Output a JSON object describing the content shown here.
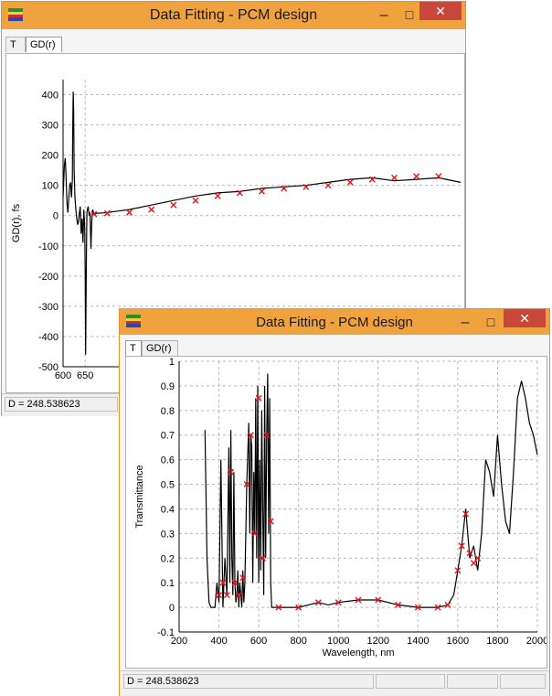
{
  "colors": {
    "titlebar": "#f0a23e",
    "close": "#c7483b",
    "fit_curve": "#000000",
    "data_points": "#e8141a"
  },
  "windows": [
    {
      "title": "Data Fitting - PCM design",
      "tabs": [
        "T",
        "GD(r)"
      ],
      "active_tab": "GD(r)",
      "status_text": "D = 248.538623",
      "controls": {
        "minimize": "–",
        "maximize": "□",
        "close": "✕"
      }
    },
    {
      "title": "Data Fitting - PCM design",
      "tabs": [
        "T",
        "GD(r)"
      ],
      "active_tab": "T",
      "status_text": "D = 248.538623",
      "controls": {
        "minimize": "–",
        "maximize": "□",
        "close": "✕"
      }
    }
  ],
  "chart_data": [
    {
      "type": "line",
      "ylabel": "GD(r), fs",
      "xlabel": "",
      "xlim": [
        600,
        1500
      ],
      "ylim": [
        -500,
        450
      ],
      "grid": true,
      "xticks": [
        600,
        650
      ],
      "yticks": [
        400,
        300,
        200,
        100,
        0,
        -100,
        -200,
        -300,
        -400,
        -500
      ],
      "series": [
        {
          "style": "line",
          "x": [
            600,
            603,
            605,
            607,
            609,
            611,
            613,
            615,
            617,
            619,
            621,
            622,
            623,
            624,
            625,
            627,
            629,
            631,
            633,
            635,
            637,
            639,
            641,
            643,
            645,
            647,
            649,
            650,
            651,
            652,
            653,
            654,
            655,
            657,
            659,
            661,
            663,
            665,
            667,
            669,
            671,
            673,
            675,
            680,
            690,
            700,
            750,
            800,
            850,
            900,
            950,
            1000,
            1050,
            1100,
            1150,
            1200,
            1250,
            1300,
            1350,
            1400,
            1450,
            1500
          ],
          "y": [
            60,
            170,
            190,
            120,
            40,
            10,
            60,
            100,
            110,
            60,
            120,
            300,
            410,
            350,
            150,
            60,
            20,
            -10,
            -30,
            -20,
            10,
            30,
            -60,
            -10,
            -90,
            20,
            -40,
            -180,
            -460,
            -300,
            -120,
            10,
            20,
            30,
            0,
            10,
            -110,
            -20,
            20,
            10,
            5,
            5,
            8,
            8,
            9,
            10,
            20,
            35,
            50,
            65,
            75,
            80,
            90,
            95,
            100,
            110,
            120,
            125,
            115,
            120,
            125,
            110
          ]
        },
        {
          "style": "markers",
          "x": [
            670,
            700,
            750,
            800,
            850,
            900,
            950,
            1000,
            1050,
            1100,
            1150,
            1200,
            1250,
            1300,
            1350,
            1400,
            1450
          ],
          "y": [
            5,
            8,
            10,
            20,
            35,
            50,
            65,
            75,
            80,
            90,
            95,
            100,
            110,
            120,
            125,
            130,
            130
          ]
        }
      ]
    },
    {
      "type": "line",
      "ylabel": "Transmittance",
      "xlabel": "Wavelength, nm",
      "xlim": [
        200,
        2000
      ],
      "ylim": [
        -0.1,
        1
      ],
      "grid": true,
      "xticks": [
        200,
        400,
        600,
        800,
        1000,
        1200,
        1400,
        1600,
        1800,
        2000
      ],
      "yticks": [
        1,
        0.9,
        0.8,
        0.7,
        0.6,
        0.5,
        0.4,
        0.3,
        0.2,
        0.1,
        0,
        -0.1
      ],
      "series": [
        {
          "style": "line",
          "x": [
            330,
            340,
            350,
            360,
            380,
            390,
            400,
            410,
            420,
            430,
            440,
            450,
            455,
            460,
            465,
            470,
            475,
            480,
            485,
            490,
            495,
            500,
            505,
            510,
            515,
            520,
            525,
            530,
            540,
            550,
            555,
            560,
            565,
            570,
            575,
            580,
            585,
            590,
            595,
            600,
            605,
            610,
            615,
            620,
            625,
            630,
            635,
            640,
            645,
            650,
            655,
            660,
            665,
            670,
            680,
            700,
            800,
            900,
            950,
            1000,
            1100,
            1200,
            1300,
            1400,
            1500,
            1550,
            1580,
            1600,
            1620,
            1640,
            1660,
            1680,
            1700,
            1720,
            1740,
            1760,
            1780,
            1800,
            1820,
            1840,
            1860,
            1880,
            1900,
            1920,
            1940,
            1960,
            1980,
            2000
          ],
          "y": [
            0.72,
            0.2,
            0.02,
            0.0,
            0.0,
            0.1,
            0.02,
            0.6,
            0.0,
            0.2,
            0.05,
            0.65,
            0.1,
            0.72,
            0.2,
            0.05,
            0.55,
            0.1,
            0.02,
            0.05,
            0.15,
            0.0,
            0.1,
            0.05,
            0.0,
            0.15,
            0.02,
            0.1,
            0.5,
            0.75,
            0.3,
            0.7,
            0.65,
            0.1,
            0.55,
            0.3,
            0.85,
            0.2,
            0.9,
            0.1,
            0.6,
            0.15,
            0.8,
            0.4,
            0.05,
            0.9,
            0.2,
            0.7,
            0.95,
            0.3,
            0.85,
            0.1,
            0.0,
            0.0,
            0.0,
            0.0,
            0.0,
            0.02,
            0.01,
            0.02,
            0.03,
            0.03,
            0.01,
            0.0,
            0.0,
            0.01,
            0.05,
            0.15,
            0.25,
            0.4,
            0.2,
            0.25,
            0.15,
            0.3,
            0.6,
            0.55,
            0.45,
            0.7,
            0.5,
            0.35,
            0.3,
            0.55,
            0.85,
            0.92,
            0.85,
            0.75,
            0.7,
            0.62
          ]
        },
        {
          "style": "markers",
          "x": [
            400,
            420,
            440,
            460,
            480,
            500,
            520,
            540,
            560,
            580,
            600,
            620,
            640,
            660,
            700,
            800,
            900,
            1000,
            1100,
            1200,
            1300,
            1400,
            1500,
            1550,
            1600,
            1620,
            1640,
            1660,
            1680,
            1700
          ],
          "y": [
            0.05,
            0.1,
            0.05,
            0.55,
            0.1,
            0.05,
            0.12,
            0.5,
            0.7,
            0.3,
            0.85,
            0.2,
            0.7,
            0.35,
            0.0,
            0.0,
            0.02,
            0.02,
            0.03,
            0.03,
            0.01,
            0.0,
            0.0,
            0.01,
            0.15,
            0.25,
            0.38,
            0.22,
            0.18,
            0.2
          ]
        }
      ]
    }
  ]
}
